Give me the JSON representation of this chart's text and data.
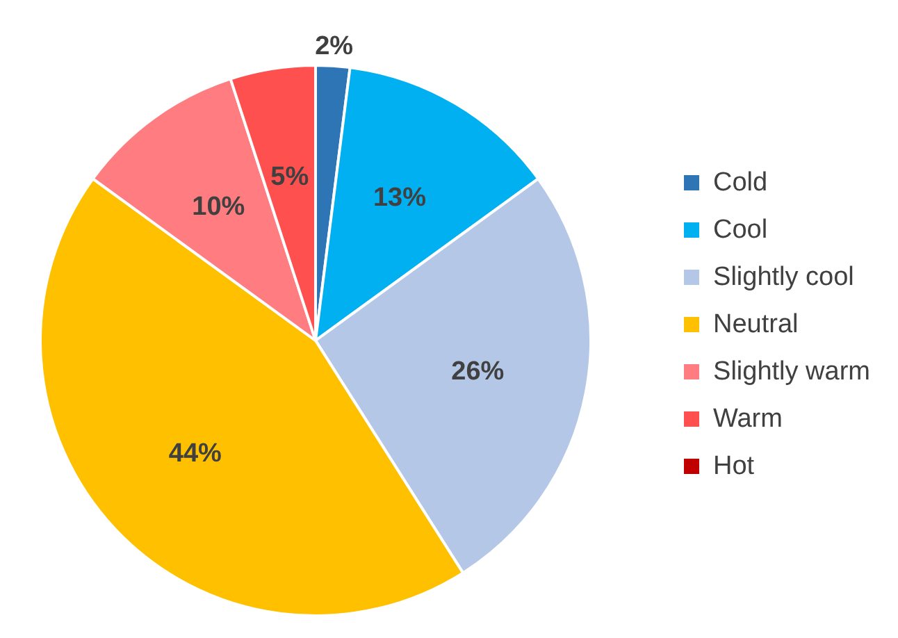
{
  "chart_data": {
    "type": "pie",
    "categories": [
      "Cold",
      "Cool",
      "Slightly cool",
      "Neutral",
      "Slightly warm",
      "Warm",
      "Hot"
    ],
    "values": [
      2,
      13,
      26,
      44,
      10,
      5,
      0
    ],
    "value_labels": [
      "2%",
      "13%",
      "26%",
      "44%",
      "10%",
      "5%",
      null
    ],
    "colors": [
      "#2e75b6",
      "#00b0f0",
      "#b4c7e7",
      "#ffc000",
      "#ff7c80",
      "#ff5050",
      "#c00000"
    ],
    "legend": "right"
  }
}
